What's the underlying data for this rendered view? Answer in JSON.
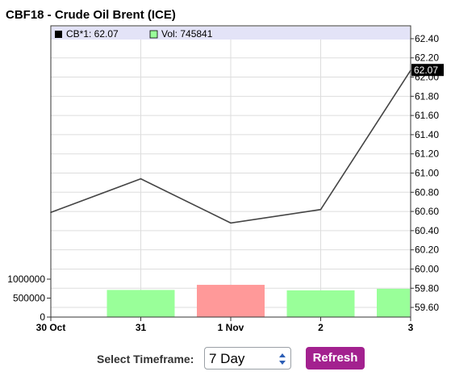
{
  "title": "CBF18 - Crude Oil Brent (ICE)",
  "legend": {
    "price_label": "CB*1: 62.07",
    "volume_label": "Vol: 745841"
  },
  "colors": {
    "price_line": "#444444",
    "volume_up": "#99ff99",
    "volume_down": "#ff9999",
    "legend_band": "#e3e3f7",
    "last_price_box": "#000000",
    "refresh_button": "#a3218f"
  },
  "controls": {
    "timeframe_label": "Select Timeframe:",
    "timeframe_value": "7 Day",
    "refresh_label": "Refresh"
  },
  "chart_data": {
    "type": "line",
    "x": [
      "30 Oct",
      "31",
      "1 Nov",
      "2",
      "3"
    ],
    "series": [
      {
        "name": "CB*1",
        "values": [
          60.59,
          60.94,
          60.48,
          60.62,
          62.07
        ]
      }
    ],
    "last_value_label": "62.07",
    "y_ticks": [
      "62.40",
      "62.20",
      "62.00",
      "61.80",
      "61.60",
      "61.40",
      "61.20",
      "61.00",
      "60.80",
      "60.60",
      "60.40",
      "60.20",
      "60.00",
      "59.80",
      "59.60"
    ],
    "ylim": [
      59.55,
      62.45
    ],
    "volume": {
      "name": "Vol",
      "categories": [
        "31",
        "1 Nov",
        "2",
        "3"
      ],
      "values": [
        715000,
        850000,
        705000,
        745841
      ],
      "direction": [
        "up",
        "down",
        "up",
        "up"
      ],
      "y_ticks": [
        "1000000",
        "500000",
        "0"
      ],
      "ylim": [
        0,
        1000000
      ]
    },
    "grid": true,
    "legend_position": "top-left"
  }
}
